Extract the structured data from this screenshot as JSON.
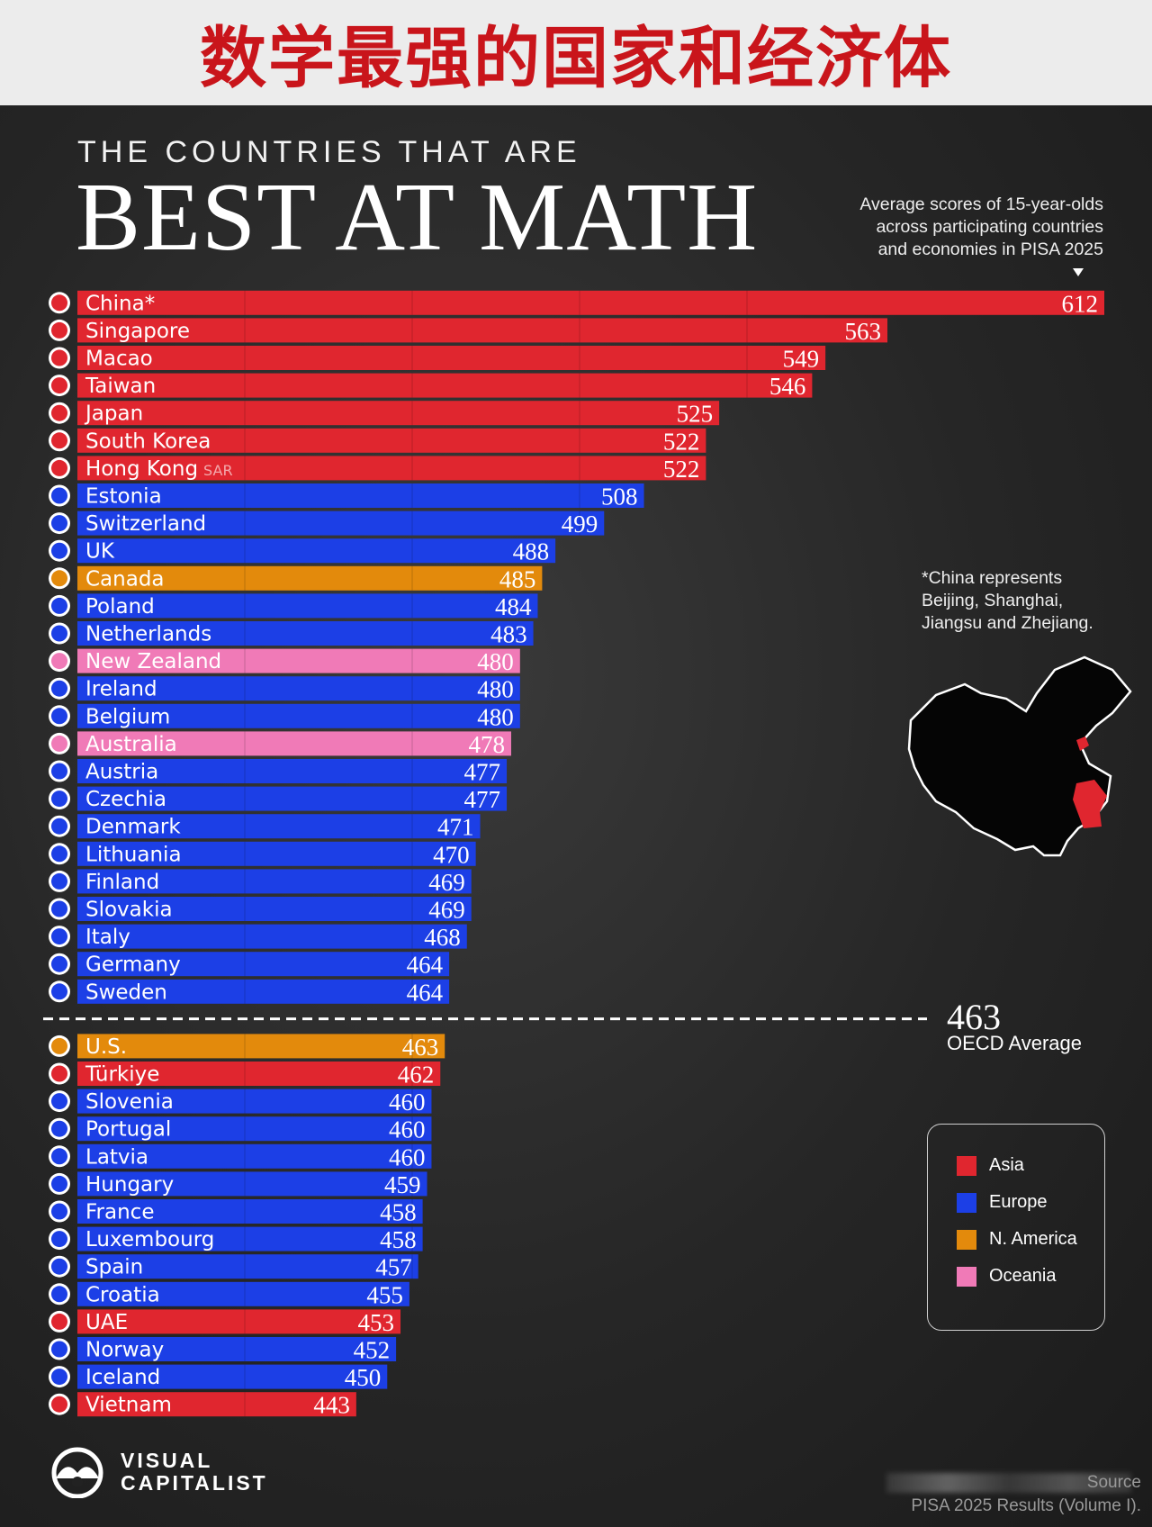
{
  "banner": {
    "title": "数学最强的国家和经济体"
  },
  "header": {
    "pre_title": "THE COUNTRIES THAT ARE",
    "title": "BEST AT MATH",
    "subtitle_lines": [
      "Average scores of 15-year-olds",
      "across participating countries",
      "and economies in PISA 2025"
    ]
  },
  "footnote": {
    "lines": [
      "*China represents",
      "Beijing, Shanghai,",
      "Jiangsu and Zhejiang."
    ]
  },
  "oecd": {
    "value": "463",
    "label": "OECD Average"
  },
  "legend": [
    {
      "label": "Asia",
      "color": "#e0262f"
    },
    {
      "label": "Europe",
      "color": "#1c3fe6"
    },
    {
      "label": "N. America",
      "color": "#e38a0c"
    },
    {
      "label": "Oceania",
      "color": "#f07ab7"
    }
  ],
  "logo": {
    "line1": "VISUAL",
    "line2": "CAPITALIST",
    "icon": "visual-capitalist-logo-icon"
  },
  "source": {
    "line1": "Source",
    "line2": "PISA 2025 Results (Volume I)."
  },
  "chart_data": {
    "type": "bar",
    "orientation": "horizontal",
    "title": "BEST AT MATH",
    "reference_line": {
      "value": 463,
      "label": "OECD Average"
    },
    "categories": [
      "China*",
      "Singapore",
      "Macao",
      "Taiwan",
      "Japan",
      "South Korea",
      "Hong Kong",
      "Estonia",
      "Switzerland",
      "UK",
      "Canada",
      "Poland",
      "Netherlands",
      "New Zealand",
      "Ireland",
      "Belgium",
      "Australia",
      "Austria",
      "Czechia",
      "Denmark",
      "Lithuania",
      "Finland",
      "Slovakia",
      "Italy",
      "Germany",
      "Sweden",
      "U.S.",
      "Türkiye",
      "Slovenia",
      "Portugal",
      "Latvia",
      "Hungary",
      "France",
      "Luxembourg",
      "Spain",
      "Croatia",
      "UAE",
      "Norway",
      "Iceland",
      "Vietnam"
    ],
    "category_suffixes": {
      "Hong Kong": "SAR"
    },
    "values": [
      612,
      563,
      549,
      546,
      525,
      522,
      522,
      508,
      499,
      488,
      485,
      484,
      483,
      480,
      480,
      480,
      478,
      477,
      477,
      471,
      470,
      469,
      469,
      468,
      464,
      464,
      463,
      462,
      460,
      460,
      460,
      459,
      458,
      458,
      457,
      455,
      453,
      452,
      450,
      443
    ],
    "regions": [
      "Asia",
      "Asia",
      "Asia",
      "Asia",
      "Asia",
      "Asia",
      "Asia",
      "Europe",
      "Europe",
      "Europe",
      "N. America",
      "Europe",
      "Europe",
      "Oceania",
      "Europe",
      "Europe",
      "Oceania",
      "Europe",
      "Europe",
      "Europe",
      "Europe",
      "Europe",
      "Europe",
      "Europe",
      "Europe",
      "Europe",
      "N. America",
      "Asia",
      "Europe",
      "Europe",
      "Europe",
      "Europe",
      "Europe",
      "Europe",
      "Europe",
      "Europe",
      "Asia",
      "Europe",
      "Europe",
      "Asia"
    ],
    "flags": [
      "flag-china-icon",
      "flag-singapore-icon",
      "flag-macao-icon",
      "flag-taiwan-icon",
      "flag-japan-icon",
      "flag-south-korea-icon",
      "flag-hong-kong-icon",
      "flag-estonia-icon",
      "flag-switzerland-icon",
      "flag-uk-icon",
      "flag-canada-icon",
      "flag-poland-icon",
      "flag-netherlands-icon",
      "flag-new-zealand-icon",
      "flag-ireland-icon",
      "flag-belgium-icon",
      "flag-australia-icon",
      "flag-austria-icon",
      "flag-czechia-icon",
      "flag-denmark-icon",
      "flag-lithuania-icon",
      "flag-finland-icon",
      "flag-slovakia-icon",
      "flag-italy-icon",
      "flag-germany-icon",
      "flag-sweden-icon",
      "flag-us-icon",
      "flag-turkiye-icon",
      "flag-slovenia-icon",
      "flag-portugal-icon",
      "flag-latvia-icon",
      "flag-hungary-icon",
      "flag-france-icon",
      "flag-luxembourg-icon",
      "flag-spain-icon",
      "flag-croatia-icon",
      "flag-uae-icon",
      "flag-norway-icon",
      "flag-iceland-icon",
      "flag-vietnam-icon"
    ],
    "region_colors": {
      "Asia": "#e0262f",
      "Europe": "#1c3fe6",
      "N. America": "#e38a0c",
      "Oceania": "#f07ab7"
    }
  }
}
